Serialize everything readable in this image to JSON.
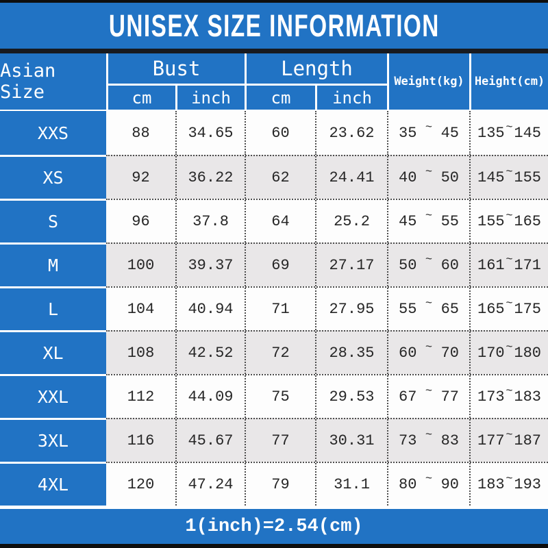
{
  "title": "UNISEX SIZE INFORMATION",
  "footer_note": "1(inch)=2.54(cm)",
  "colors": {
    "blue": "#2173c4",
    "row_white": "#fdfdfd",
    "row_gray": "#e9e7e8",
    "black_bar": "#0e0e0e",
    "dotted_border": "#4c4c4c",
    "text_white": "#ffffff",
    "text_dark": "#262626"
  },
  "table": {
    "corner_label": "Asian Size",
    "bust_label": "Bust",
    "length_label": "Length",
    "cm_label": "cm",
    "inch_label": "inch",
    "weight_label": "Weight(kg)",
    "height_label": "Height(cm)",
    "tilde": "~",
    "rows": [
      {
        "size": "XXS",
        "bust_cm": "88",
        "bust_in": "34.65",
        "len_cm": "60",
        "len_in": "23.62",
        "w_min": "35",
        "w_max": "45",
        "h_min": "135",
        "h_max": "145"
      },
      {
        "size": "XS",
        "bust_cm": "92",
        "bust_in": "36.22",
        "len_cm": "62",
        "len_in": "24.41",
        "w_min": "40",
        "w_max": "50",
        "h_min": "145",
        "h_max": "155"
      },
      {
        "size": "S",
        "bust_cm": "96",
        "bust_in": "37.8",
        "len_cm": "64",
        "len_in": "25.2",
        "w_min": "45",
        "w_max": "55",
        "h_min": "155",
        "h_max": "165"
      },
      {
        "size": "M",
        "bust_cm": "100",
        "bust_in": "39.37",
        "len_cm": "69",
        "len_in": "27.17",
        "w_min": "50",
        "w_max": "60",
        "h_min": "161",
        "h_max": "171"
      },
      {
        "size": "L",
        "bust_cm": "104",
        "bust_in": "40.94",
        "len_cm": "71",
        "len_in": "27.95",
        "w_min": "55",
        "w_max": "65",
        "h_min": "165",
        "h_max": "175"
      },
      {
        "size": "XL",
        "bust_cm": "108",
        "bust_in": "42.52",
        "len_cm": "72",
        "len_in": "28.35",
        "w_min": "60",
        "w_max": "70",
        "h_min": "170",
        "h_max": "180"
      },
      {
        "size": "XXL",
        "bust_cm": "112",
        "bust_in": "44.09",
        "len_cm": "75",
        "len_in": "29.53",
        "w_min": "67",
        "w_max": "77",
        "h_min": "173",
        "h_max": "183"
      },
      {
        "size": "3XL",
        "bust_cm": "116",
        "bust_in": "45.67",
        "len_cm": "77",
        "len_in": "30.31",
        "w_min": "73",
        "w_max": "83",
        "h_min": "177",
        "h_max": "187"
      },
      {
        "size": "4XL",
        "bust_cm": "120",
        "bust_in": "47.24",
        "len_cm": "79",
        "len_in": "31.1",
        "w_min": "80",
        "w_max": "90",
        "h_min": "183",
        "h_max": "193"
      }
    ]
  },
  "chart_data": {
    "type": "table",
    "title": "UNISEX SIZE INFORMATION",
    "columns": [
      "Asian Size",
      "Bust cm",
      "Bust inch",
      "Length cm",
      "Length inch",
      "Weight(kg)",
      "Height(cm)"
    ],
    "rows": [
      [
        "XXS",
        88,
        34.65,
        60,
        23.62,
        "35~45",
        "135~145"
      ],
      [
        "XS",
        92,
        36.22,
        62,
        24.41,
        "40~50",
        "145~155"
      ],
      [
        "S",
        96,
        37.8,
        64,
        25.2,
        "45~55",
        "155~165"
      ],
      [
        "M",
        100,
        39.37,
        69,
        27.17,
        "50~60",
        "161~171"
      ],
      [
        "L",
        104,
        40.94,
        71,
        27.95,
        "55~65",
        "165~175"
      ],
      [
        "XL",
        108,
        42.52,
        72,
        28.35,
        "60~70",
        "170~180"
      ],
      [
        "XXL",
        112,
        44.09,
        75,
        29.53,
        "67~77",
        "173~183"
      ],
      [
        "3XL",
        116,
        45.67,
        77,
        30.31,
        "73~83",
        "177~187"
      ],
      [
        "4XL",
        120,
        47.24,
        79,
        31.1,
        "80~90",
        "183~193"
      ]
    ],
    "note": "1(inch)=2.54(cm)",
    "layout": {
      "header_background": "#2173c4",
      "alternating_rows": true,
      "grid": "dotted"
    }
  }
}
